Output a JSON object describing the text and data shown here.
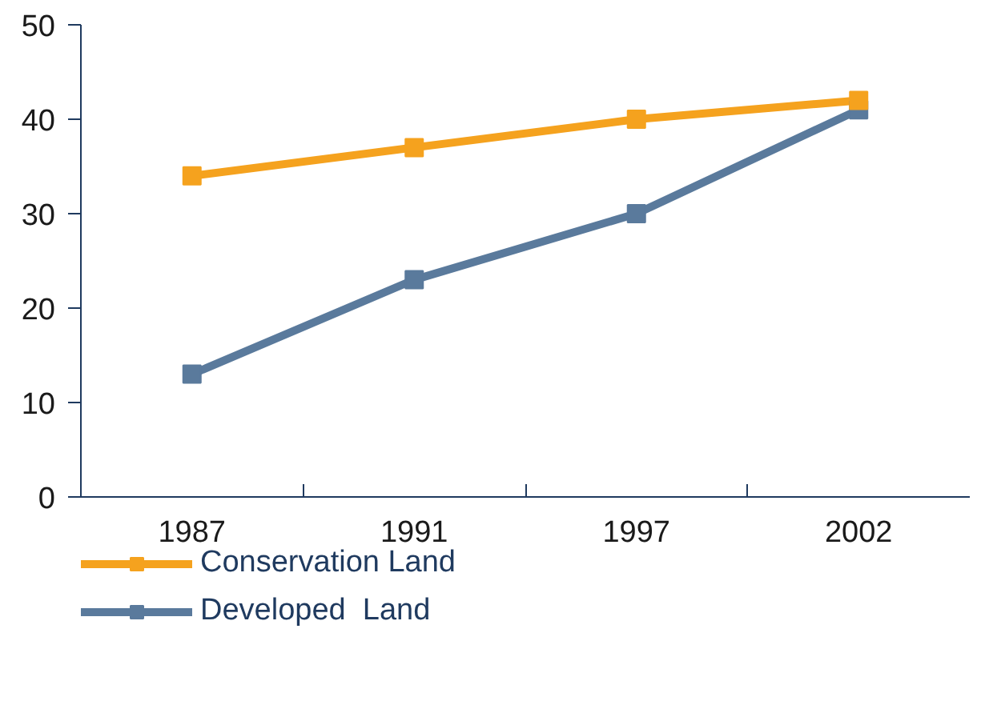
{
  "chart_data": {
    "type": "line",
    "categories": [
      "1987",
      "1991",
      "1997",
      "2002"
    ],
    "series": [
      {
        "name": "Conservation Land",
        "color": "#f5a21e",
        "values": [
          34,
          37,
          40,
          42
        ]
      },
      {
        "name": "Developed  Land",
        "color": "#5a7a9c",
        "values": [
          13,
          23,
          30,
          41
        ]
      }
    ],
    "ylim": [
      0,
      50
    ],
    "yticks": [
      0,
      10,
      20,
      30,
      40,
      50
    ],
    "grid": false,
    "legend": "bottom",
    "marker": "square",
    "line_style": "solid"
  }
}
